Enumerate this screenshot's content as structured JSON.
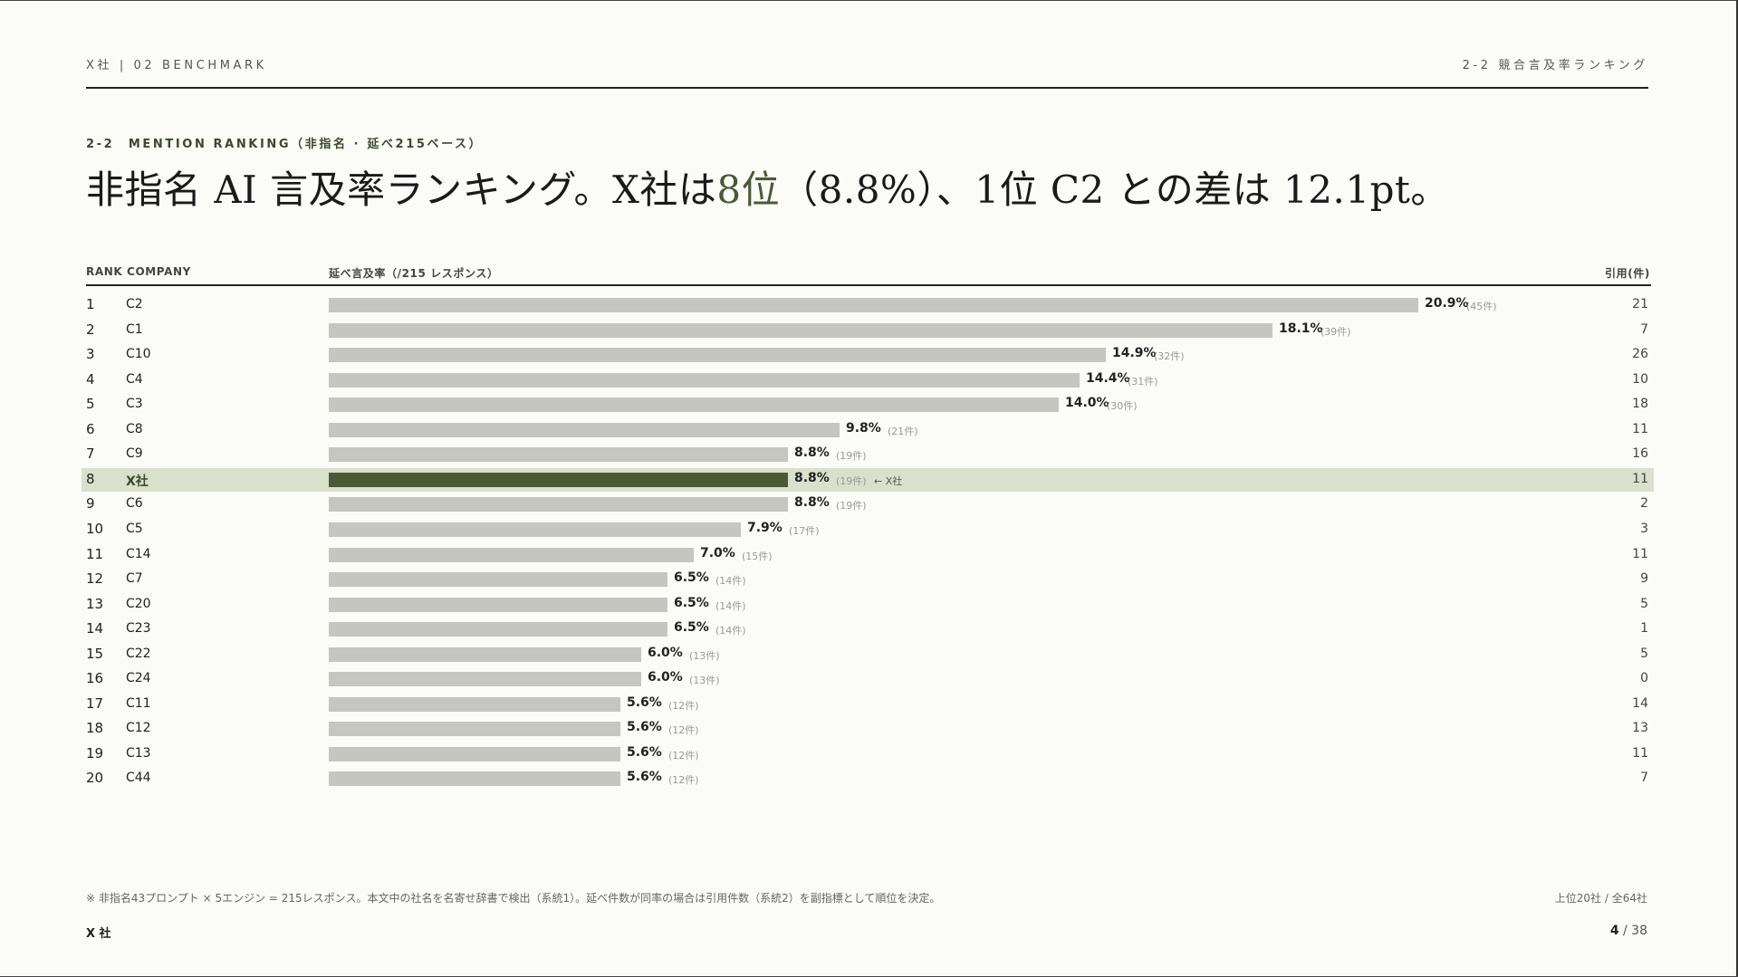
{
  "header": {
    "left": "X社 | 02 BENCHMARK",
    "right": "2-2 競合言及率ランキング"
  },
  "kicker": "2-2　MENTION RANKING（非指名 · 延べ215ベース）",
  "headline": {
    "pre": "非指名 AI 言及率ランキング。X社は",
    "accent": "8位",
    "post": "（8.8%）、1位 C2 との差は 12.1pt。"
  },
  "columns": {
    "rank_company": "RANK COMPANY",
    "rate": "延べ言及率（/215 レスポンス）",
    "citations": "引用(件)"
  },
  "chart_data": {
    "type": "bar",
    "orientation": "horizontal",
    "xlim": [
      0,
      20.9
    ],
    "highlight_company": "X社",
    "highlight_marker": "← X社",
    "rows": [
      {
        "rank": "1",
        "company": "C2",
        "rate": 20.9,
        "rate_label": "20.9%",
        "count_label": "(45件)",
        "citations": "21"
      },
      {
        "rank": "2",
        "company": "C1",
        "rate": 18.1,
        "rate_label": "18.1%",
        "count_label": "(39件)",
        "citations": "7"
      },
      {
        "rank": "3",
        "company": "C10",
        "rate": 14.9,
        "rate_label": "14.9%",
        "count_label": "(32件)",
        "citations": "26"
      },
      {
        "rank": "4",
        "company": "C4",
        "rate": 14.4,
        "rate_label": "14.4%",
        "count_label": "(31件)",
        "citations": "10"
      },
      {
        "rank": "5",
        "company": "C3",
        "rate": 14.0,
        "rate_label": "14.0%",
        "count_label": "(30件)",
        "citations": "18"
      },
      {
        "rank": "6",
        "company": "C8",
        "rate": 9.8,
        "rate_label": "9.8%",
        "count_label": "(21件)",
        "citations": "11"
      },
      {
        "rank": "7",
        "company": "C9",
        "rate": 8.8,
        "rate_label": "8.8%",
        "count_label": "(19件)",
        "citations": "16"
      },
      {
        "rank": "8",
        "company": "X社",
        "rate": 8.8,
        "rate_label": "8.8%",
        "count_label": "(19件)",
        "citations": "11"
      },
      {
        "rank": "9",
        "company": "C6",
        "rate": 8.8,
        "rate_label": "8.8%",
        "count_label": "(19件)",
        "citations": "2"
      },
      {
        "rank": "10",
        "company": "C5",
        "rate": 7.9,
        "rate_label": "7.9%",
        "count_label": "(17件)",
        "citations": "3"
      },
      {
        "rank": "11",
        "company": "C14",
        "rate": 7.0,
        "rate_label": "7.0%",
        "count_label": "(15件)",
        "citations": "11"
      },
      {
        "rank": "12",
        "company": "C7",
        "rate": 6.5,
        "rate_label": "6.5%",
        "count_label": "(14件)",
        "citations": "9"
      },
      {
        "rank": "13",
        "company": "C20",
        "rate": 6.5,
        "rate_label": "6.5%",
        "count_label": "(14件)",
        "citations": "5"
      },
      {
        "rank": "14",
        "company": "C23",
        "rate": 6.5,
        "rate_label": "6.5%",
        "count_label": "(14件)",
        "citations": "1"
      },
      {
        "rank": "15",
        "company": "C22",
        "rate": 6.0,
        "rate_label": "6.0%",
        "count_label": "(13件)",
        "citations": "5"
      },
      {
        "rank": "16",
        "company": "C24",
        "rate": 6.0,
        "rate_label": "6.0%",
        "count_label": "(13件)",
        "citations": "0"
      },
      {
        "rank": "17",
        "company": "C11",
        "rate": 5.6,
        "rate_label": "5.6%",
        "count_label": "(12件)",
        "citations": "14"
      },
      {
        "rank": "18",
        "company": "C12",
        "rate": 5.6,
        "rate_label": "5.6%",
        "count_label": "(12件)",
        "citations": "13"
      },
      {
        "rank": "19",
        "company": "C13",
        "rate": 5.6,
        "rate_label": "5.6%",
        "count_label": "(12件)",
        "citations": "11"
      },
      {
        "rank": "20",
        "company": "C44",
        "rate": 5.6,
        "rate_label": "5.6%",
        "count_label": "(12件)",
        "citations": "7"
      }
    ]
  },
  "footer": {
    "note": "※ 非指名43プロンプト × 5エンジン = 215レスポンス。本文中の社名を名寄せ辞書で検出（系統1）。延べ件数が同率の場合は引用件数（系統2）を副指標として順位を決定。",
    "scope": "上位20社 / 全64社",
    "brand": "X 社",
    "page_current": "4",
    "page_total": "/ 38"
  }
}
